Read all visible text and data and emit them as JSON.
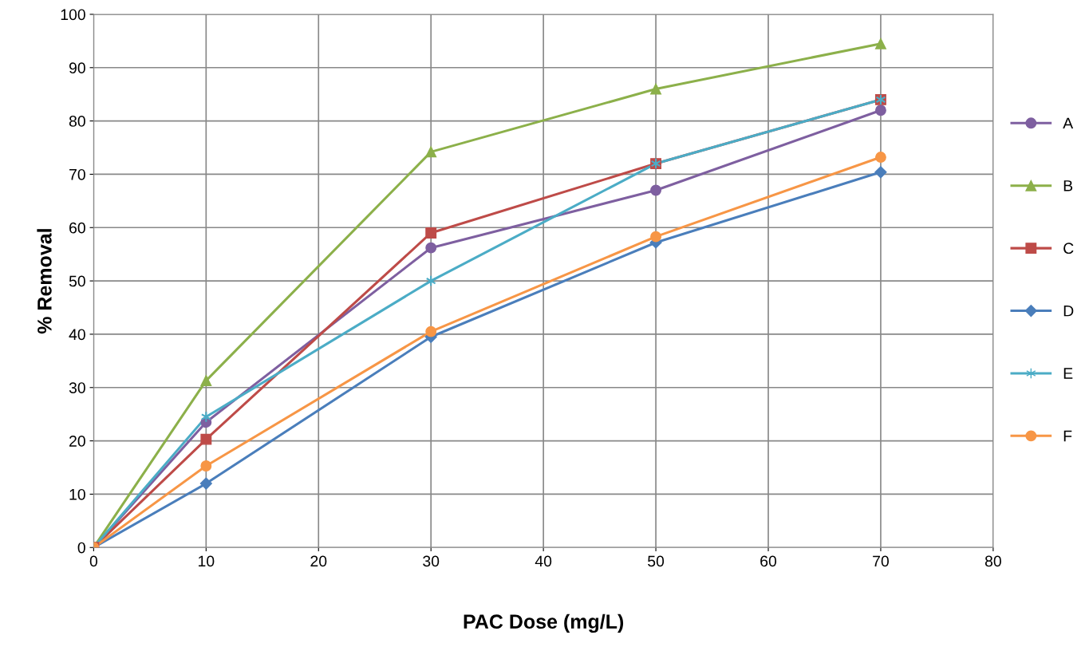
{
  "chart_data": {
    "type": "line",
    "xlabel": "PAC Dose (mg/L)",
    "ylabel": "% Removal",
    "x": [
      0,
      10,
      30,
      50,
      70
    ],
    "series": [
      {
        "name": "A",
        "color": "#7e5fa0",
        "marker": "circle",
        "values": [
          0,
          23.5,
          56.2,
          67,
          82
        ]
      },
      {
        "name": "B",
        "color": "#8cb04a",
        "marker": "triangle",
        "values": [
          0,
          31.3,
          74.2,
          86,
          94.5
        ]
      },
      {
        "name": "C",
        "color": "#be4b48",
        "marker": "square",
        "values": [
          0,
          20.3,
          59,
          72,
          84
        ]
      },
      {
        "name": "D",
        "color": "#4a7ebb",
        "marker": "diamond",
        "values": [
          0,
          12,
          39.5,
          57.2,
          70.4
        ]
      },
      {
        "name": "E",
        "color": "#4bacc6",
        "marker": "cross",
        "values": [
          0,
          24.5,
          50,
          72,
          84
        ]
      },
      {
        "name": "F",
        "color": "#f79646",
        "marker": "circle",
        "values": [
          0,
          15.3,
          40.5,
          58.3,
          73.2
        ]
      }
    ],
    "xlim": [
      0,
      80
    ],
    "xticks": [
      0,
      10,
      20,
      30,
      40,
      50,
      60,
      70,
      80
    ],
    "ylim": [
      0,
      100
    ],
    "yticks": [
      0,
      10,
      20,
      30,
      40,
      50,
      60,
      70,
      80,
      90,
      100
    ],
    "grid": true,
    "legend": "right",
    "line_style": "solid"
  }
}
